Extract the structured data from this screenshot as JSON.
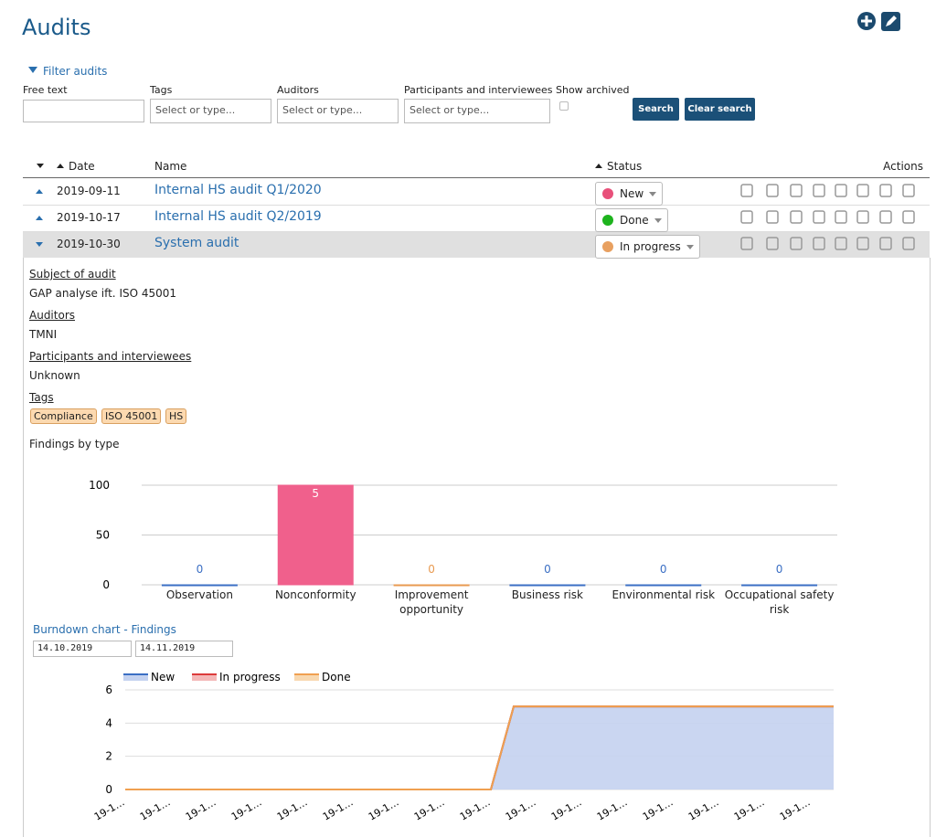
{
  "header": {
    "title": "Audits"
  },
  "filter": {
    "toggle": "Filter audits",
    "fields": [
      {
        "label": "Free text"
      },
      {
        "label": "Tags",
        "placeholder": "Select or type..."
      },
      {
        "label": "Auditors",
        "placeholder": "Select or type..."
      },
      {
        "label": "Participants and interviewees",
        "placeholder": "Select or type..."
      }
    ],
    "archived": "Show archived",
    "buttons": [
      "Search",
      "Clear search"
    ]
  },
  "table": {
    "columns": [
      "Date",
      "Name",
      "Status",
      "Actions"
    ],
    "rows": [
      {
        "date": "2019-09-11",
        "name": "Internal HS audit Q1/2020",
        "status": "New",
        "status_color": "#e8507a"
      },
      {
        "date": "2019-10-17",
        "name": "Internal HS audit Q2/2019",
        "status": "Done",
        "status_color": "#1db31d"
      },
      {
        "date": "2019-10-30",
        "name": "System audit",
        "status": "In progress",
        "status_color": "#e8a060"
      }
    ]
  },
  "detail": {
    "sections": [
      {
        "label": "Subject of audit",
        "value": "GAP analyse ift. ISO 45001"
      },
      {
        "label": "Auditors",
        "value": "TMNI"
      },
      {
        "label": "Participants and interviewees",
        "value": "Unknown"
      }
    ],
    "tags_label": "Tags",
    "tags": [
      "Compliance",
      "ISO 45001",
      "HS"
    ],
    "date_from": "14.10.2019",
    "date_to": "14.11.2019"
  },
  "chart_data": [
    {
      "type": "bar",
      "title": "Findings by type",
      "categories": [
        "Observation",
        "Nonconformity",
        "Improvement opportunity",
        "Business risk",
        "Environmental risk",
        "Occupational safety risk"
      ],
      "values": [
        0,
        100,
        0,
        0,
        0,
        0
      ],
      "counts": [
        0,
        5,
        0,
        0,
        0,
        0
      ],
      "colors": [
        "#3b6fc4",
        "#f0608c",
        "#e89a50",
        "#3b6fc4",
        "#3b6fc4",
        "#3b6fc4"
      ],
      "ylim": [
        0,
        100
      ],
      "yticks": [
        0,
        50,
        100
      ],
      "grid": true
    },
    {
      "type": "area",
      "title": "Burndown chart - Findings",
      "stacked": true,
      "categories": [
        "19-1…",
        null,
        "19-1…",
        null,
        "19-1…",
        null,
        "19-1…",
        null,
        "19-1…",
        null,
        "19-1…",
        null,
        "19-1…",
        null,
        "19-1…",
        null,
        "19-1…",
        null,
        "19-1…",
        null,
        "19-1…",
        null,
        "19-1…",
        null,
        "19-1…",
        null,
        "19-1…",
        null,
        "19-1…",
        null,
        "19-1…",
        null
      ],
      "series": [
        {
          "name": "New",
          "color": "#3b6fc4",
          "fill": "#c4d2f0",
          "values": [
            0,
            0,
            0,
            0,
            0,
            0,
            0,
            0,
            0,
            0,
            0,
            0,
            0,
            0,
            0,
            0,
            0,
            5,
            5,
            5,
            5,
            5,
            5,
            5,
            5,
            5,
            5,
            5,
            5,
            5,
            5,
            5
          ]
        },
        {
          "name": "In progress",
          "color": "#dc3b3b",
          "fill": "#f4b8b8",
          "values": [
            0,
            0,
            0,
            0,
            0,
            0,
            0,
            0,
            0,
            0,
            0,
            0,
            0,
            0,
            0,
            0,
            0,
            0,
            0,
            0,
            0,
            0,
            0,
            0,
            0,
            0,
            0,
            0,
            0,
            0,
            0,
            0
          ]
        },
        {
          "name": "Done",
          "color": "#f0a050",
          "fill": "#f8d8b0",
          "values": [
            0,
            0,
            0,
            0,
            0,
            0,
            0,
            0,
            0,
            0,
            0,
            0,
            0,
            0,
            0,
            0,
            0,
            0,
            0,
            0,
            0,
            0,
            0,
            0,
            0,
            0,
            0,
            0,
            0,
            0,
            0,
            0
          ]
        }
      ],
      "ylim": [
        0,
        6
      ],
      "yticks": [
        0,
        2,
        4,
        6
      ],
      "grid": true,
      "legend": "top"
    }
  ]
}
